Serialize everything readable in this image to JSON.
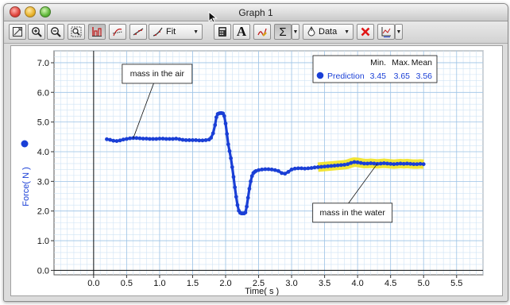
{
  "window": {
    "title": "Graph 1"
  },
  "toolbar": {
    "fit_label": "Fit",
    "data_label": "Data",
    "text_tool_label": "A",
    "stats_label": "Σ"
  },
  "stats_box": {
    "headers": [
      "Min.",
      "Max.",
      "Mean"
    ],
    "series_name": "Prediction",
    "values": [
      "3.45",
      "3.65",
      "3.56"
    ],
    "color": "#1a3fd6"
  },
  "annotations": [
    {
      "text": "mass in the air",
      "point_x": 0.6,
      "point_y": 4.45
    },
    {
      "text": "mass in the water",
      "point_x": 4.3,
      "point_y": 3.6
    }
  ],
  "chart_data": {
    "type": "scatter",
    "xlabel": "Time( s )",
    "ylabel": "Force( N )",
    "xlim": [
      -0.6,
      5.9
    ],
    "ylim": [
      -0.15,
      7.4
    ],
    "x_ticks": [
      "0.0",
      "0.5",
      "1.0",
      "1.5",
      "2.0",
      "2.5",
      "3.0",
      "3.5",
      "4.0",
      "4.5",
      "5.0",
      "5.5"
    ],
    "y_ticks": [
      "0.0",
      "1.0",
      "2.0",
      "3.0",
      "4.0",
      "5.0",
      "6.0",
      "7.0"
    ],
    "grid": true,
    "highlight": {
      "x_start": 3.4,
      "x_end": 5.0,
      "color": "#f2e21f"
    },
    "series": [
      {
        "name": "Prediction",
        "color": "#1a3fd6",
        "x": [
          0.2,
          0.25,
          0.3,
          0.35,
          0.4,
          0.45,
          0.5,
          0.55,
          0.6,
          0.65,
          0.7,
          0.75,
          0.8,
          0.85,
          0.9,
          0.95,
          1.0,
          1.05,
          1.1,
          1.15,
          1.2,
          1.25,
          1.3,
          1.35,
          1.4,
          1.45,
          1.5,
          1.55,
          1.6,
          1.65,
          1.7,
          1.75,
          1.78,
          1.81,
          1.84,
          1.86,
          1.88,
          1.9,
          1.92,
          1.94,
          1.96,
          1.98,
          2.0,
          2.02,
          2.04,
          2.06,
          2.08,
          2.1,
          2.12,
          2.14,
          2.16,
          2.18,
          2.2,
          2.22,
          2.24,
          2.26,
          2.28,
          2.3,
          2.32,
          2.34,
          2.36,
          2.38,
          2.4,
          2.42,
          2.44,
          2.46,
          2.5,
          2.55,
          2.6,
          2.65,
          2.7,
          2.75,
          2.8,
          2.85,
          2.9,
          2.95,
          3.0,
          3.05,
          3.1,
          3.15,
          3.2,
          3.25,
          3.3,
          3.35,
          3.4,
          3.45,
          3.5,
          3.55,
          3.6,
          3.65,
          3.7,
          3.75,
          3.8,
          3.85,
          3.9,
          3.95,
          4.0,
          4.05,
          4.1,
          4.15,
          4.2,
          4.25,
          4.3,
          4.35,
          4.4,
          4.45,
          4.5,
          4.55,
          4.6,
          4.65,
          4.7,
          4.75,
          4.8,
          4.85,
          4.9,
          4.95,
          5.0
        ],
        "y": [
          4.42,
          4.4,
          4.37,
          4.36,
          4.38,
          4.41,
          4.43,
          4.45,
          4.46,
          4.46,
          4.45,
          4.44,
          4.44,
          4.43,
          4.43,
          4.43,
          4.44,
          4.44,
          4.43,
          4.43,
          4.43,
          4.44,
          4.42,
          4.4,
          4.39,
          4.39,
          4.39,
          4.39,
          4.38,
          4.38,
          4.39,
          4.41,
          4.47,
          4.62,
          4.9,
          5.16,
          5.27,
          5.29,
          5.3,
          5.3,
          5.29,
          5.2,
          4.95,
          4.6,
          4.25,
          4.02,
          3.78,
          3.48,
          3.15,
          2.8,
          2.48,
          2.2,
          2.01,
          1.94,
          1.92,
          1.92,
          1.92,
          1.95,
          2.15,
          2.45,
          2.75,
          3.0,
          3.18,
          3.28,
          3.32,
          3.35,
          3.38,
          3.4,
          3.41,
          3.41,
          3.4,
          3.38,
          3.35,
          3.28,
          3.26,
          3.32,
          3.4,
          3.43,
          3.44,
          3.44,
          3.43,
          3.44,
          3.45,
          3.47,
          3.48,
          3.49,
          3.5,
          3.51,
          3.52,
          3.53,
          3.54,
          3.55,
          3.56,
          3.58,
          3.62,
          3.65,
          3.64,
          3.62,
          3.6,
          3.6,
          3.61,
          3.6,
          3.59,
          3.6,
          3.61,
          3.6,
          3.59,
          3.58,
          3.59,
          3.6,
          3.59,
          3.6,
          3.59,
          3.58,
          3.58,
          3.59,
          3.58
        ]
      }
    ]
  }
}
